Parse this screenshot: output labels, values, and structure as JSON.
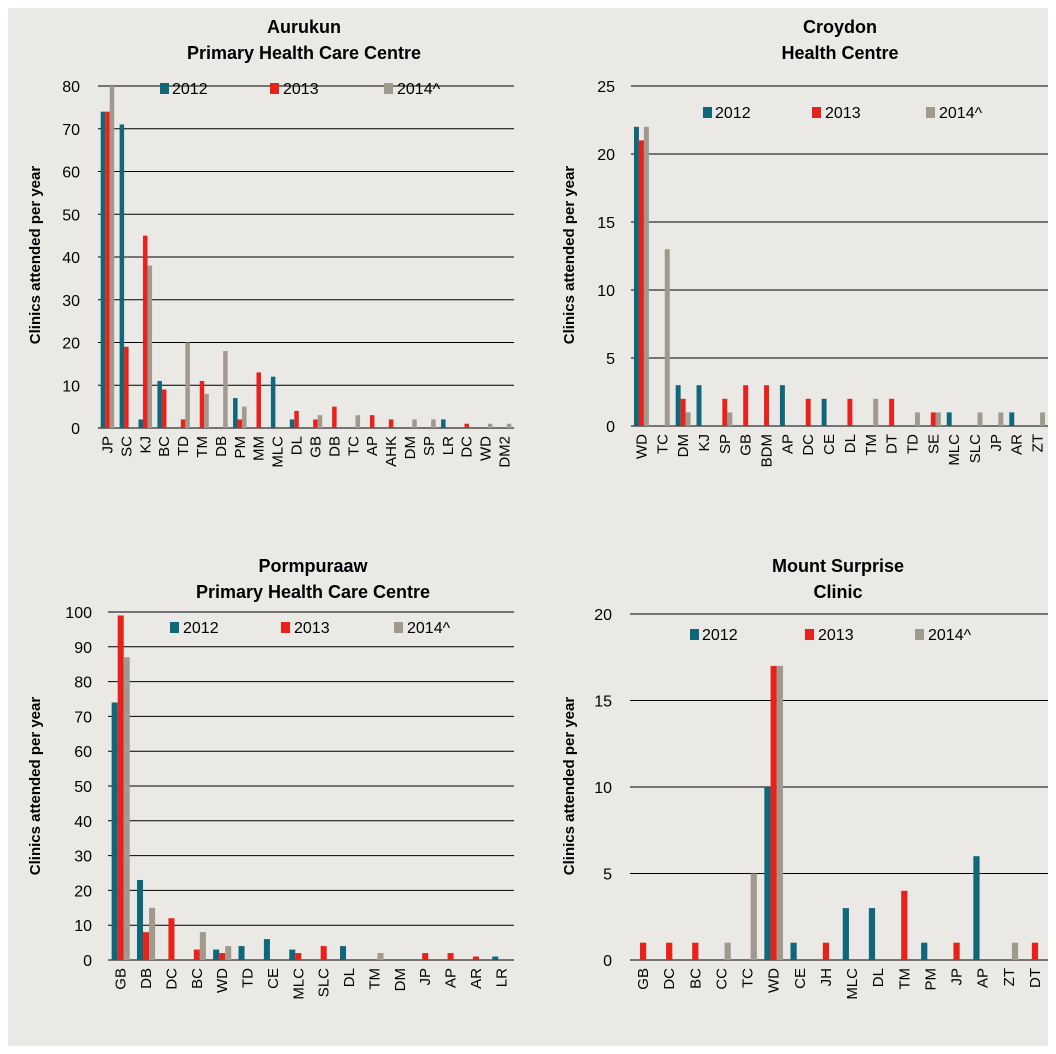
{
  "colors": {
    "2012": "#0f6879",
    "2013": "#e8221b",
    "2014^": "#a09a8e",
    "grid": "#000000",
    "background": "#ebe9e5"
  },
  "chart_data": [
    {
      "type": "bar",
      "title": [
        "Aurukun",
        "Primary Health Care Centre"
      ],
      "ylabel": "Clinics attended per year",
      "ylim": [
        0,
        80
      ],
      "yticks": [
        0,
        10,
        20,
        30,
        40,
        50,
        60,
        70,
        80
      ],
      "legend": [
        "2012",
        "2013",
        "2014^"
      ],
      "categories": [
        "JP",
        "SC",
        "KJ",
        "BC",
        "TD",
        "TM",
        "DB",
        "PM",
        "MM",
        "MLC",
        "DL",
        "GB",
        "DB",
        "TC",
        "AP",
        "AHK",
        "DM",
        "SP",
        "LR",
        "DC",
        "WD",
        "DM2"
      ],
      "series": [
        {
          "name": "2012",
          "values": [
            74,
            71,
            2,
            11,
            0,
            0,
            0,
            7,
            0,
            12,
            2,
            0,
            0,
            0,
            0,
            0,
            0,
            0,
            2,
            0,
            0,
            0
          ]
        },
        {
          "name": "2013",
          "values": [
            74,
            19,
            45,
            9,
            2,
            11,
            0,
            2,
            13,
            0,
            4,
            2,
            5,
            0,
            3,
            2,
            0,
            0,
            0,
            1,
            0,
            0
          ]
        },
        {
          "name": "2014^",
          "values": [
            80,
            0,
            38,
            0,
            20,
            8,
            18,
            5,
            0,
            0,
            0,
            3,
            0,
            3,
            0,
            0,
            2,
            2,
            0,
            0,
            1,
            1
          ]
        }
      ]
    },
    {
      "type": "bar",
      "title": [
        "Croydon",
        "Health Centre"
      ],
      "ylabel": "Clinics attended per year",
      "ylim": [
        0,
        25
      ],
      "yticks": [
        0,
        5,
        10,
        15,
        20,
        25
      ],
      "legend": [
        "2012",
        "2013",
        "2014^"
      ],
      "categories": [
        "WD",
        "TC",
        "DM",
        "KJ",
        "SP",
        "GB",
        "BDM",
        "AP",
        "DC",
        "CE",
        "DL",
        "TM",
        "DT",
        "TD",
        "SE",
        "MLC",
        "SLC",
        "JP",
        "AR",
        "ZT"
      ],
      "series": [
        {
          "name": "2012",
          "values": [
            22,
            0,
            3,
            3,
            0,
            0,
            0,
            3,
            0,
            2,
            0,
            0,
            0,
            0,
            0,
            1,
            0,
            0,
            1,
            0
          ]
        },
        {
          "name": "2013",
          "values": [
            21,
            0,
            2,
            0,
            2,
            3,
            3,
            0,
            2,
            0,
            2,
            0,
            2,
            0,
            1,
            0,
            0,
            0,
            0,
            0
          ]
        },
        {
          "name": "2014^",
          "values": [
            22,
            13,
            1,
            0,
            1,
            0,
            0,
            0,
            0,
            0,
            0,
            2,
            0,
            1,
            1,
            0,
            1,
            1,
            0,
            1
          ]
        }
      ]
    },
    {
      "type": "bar",
      "title": [
        "Pormpuraaw",
        "Primary Health Care Centre"
      ],
      "ylabel": "Clinics attended per year",
      "ylim": [
        0,
        100
      ],
      "yticks": [
        0,
        10,
        20,
        30,
        40,
        50,
        60,
        70,
        80,
        90,
        100
      ],
      "legend": [
        "2012",
        "2013",
        "2014^"
      ],
      "categories": [
        "GB",
        "DB",
        "DC",
        "BC",
        "WD",
        "TD",
        "CE",
        "MLC",
        "SLC",
        "DL",
        "TM",
        "DM",
        "JP",
        "AP",
        "AR",
        "LR"
      ],
      "series": [
        {
          "name": "2012",
          "values": [
            74,
            23,
            0,
            0,
            3,
            4,
            6,
            3,
            0,
            4,
            0,
            0,
            0,
            0,
            0,
            1
          ]
        },
        {
          "name": "2013",
          "values": [
            99,
            8,
            12,
            3,
            2,
            0,
            0,
            2,
            4,
            0,
            0,
            0,
            2,
            2,
            1,
            0
          ]
        },
        {
          "name": "2014^",
          "values": [
            87,
            15,
            0,
            8,
            4,
            0,
            0,
            0,
            0,
            0,
            2,
            0,
            0,
            0,
            0,
            0
          ]
        }
      ]
    },
    {
      "type": "bar",
      "title": [
        "Mount Surprise",
        "Clinic"
      ],
      "ylabel": "Clinics attended per year",
      "ylim": [
        0,
        20
      ],
      "yticks": [
        0,
        5,
        10,
        15,
        20
      ],
      "legend": [
        "2012",
        "2013",
        "2014^"
      ],
      "categories": [
        "GB",
        "DC",
        "BC",
        "CC",
        "TC",
        "WD",
        "CE",
        "JH",
        "MLC",
        "DL",
        "TM",
        "PM",
        "JP",
        "AP",
        "ZT",
        "DT"
      ],
      "series": [
        {
          "name": "2012",
          "values": [
            0,
            0,
            0,
            0,
            0,
            10,
            1,
            0,
            3,
            3,
            0,
            1,
            0,
            6,
            0,
            0
          ]
        },
        {
          "name": "2013",
          "values": [
            1,
            1,
            1,
            0,
            0,
            17,
            0,
            1,
            0,
            0,
            4,
            0,
            1,
            0,
            0,
            1
          ]
        },
        {
          "name": "2014^",
          "values": [
            0,
            0,
            0,
            1,
            5,
            17,
            0,
            0,
            0,
            0,
            0,
            0,
            0,
            0,
            1,
            0
          ]
        }
      ]
    }
  ]
}
